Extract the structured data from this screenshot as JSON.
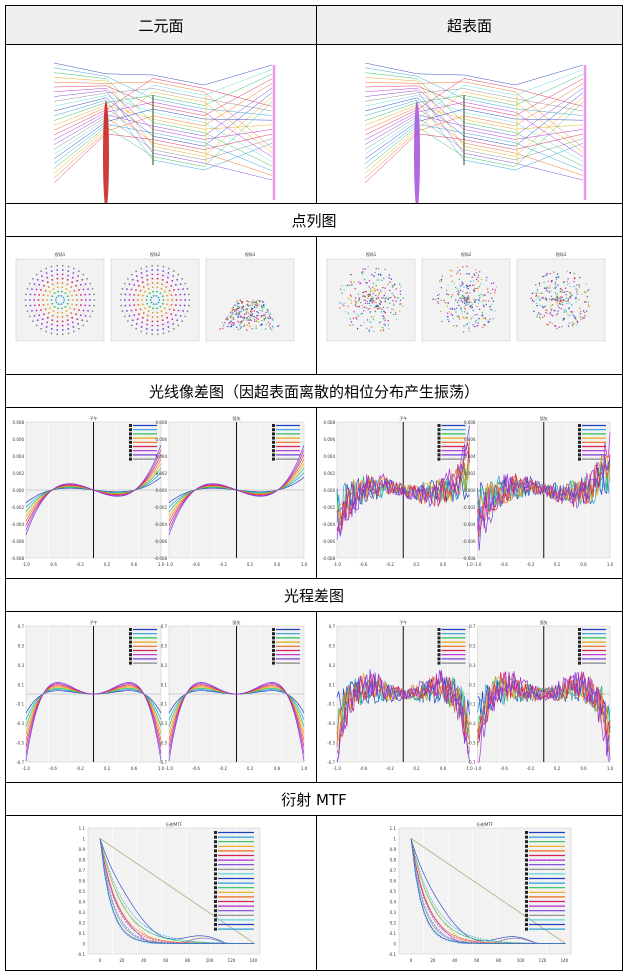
{
  "header": {
    "col_left": "二元面",
    "col_right": "超表面"
  },
  "sections": {
    "spot": "点列图",
    "ray_fan": "光线像差图（因超表面离散的相位分布产生振荡）",
    "opd": "光程差图",
    "mtf": "衍射 MTF"
  },
  "plot_text": {
    "spot_titles": [
      "视场1",
      "视场2",
      "视场3"
    ],
    "fan_titles": [
      "子午",
      "弧矢"
    ],
    "mtf_title": "衍射MTF",
    "x_ticks_fan": [
      "-1.0",
      "-0.8",
      "-0.6",
      "-0.4",
      "-0.2",
      "0.0",
      "0.2",
      "0.4",
      "0.6",
      "0.8",
      "1.0"
    ],
    "fan_y_ticks": [
      "0.008",
      "0.007",
      "0.006",
      "0.005",
      "0.004",
      "0.003",
      "0.002",
      "0.001",
      "0.000",
      "-0.001",
      "-0.002",
      "-0.003",
      "-0.004",
      "-0.005",
      "-0.006",
      "-0.007",
      "-0.008"
    ],
    "opd_y_ticks": [
      "0.7",
      "0.6",
      "0.5",
      "0.4",
      "0.3",
      "0.2",
      "0.1",
      "0.0",
      "-0.1",
      "-0.2",
      "-0.3",
      "-0.4",
      "-0.5",
      "-0.6",
      "-0.7"
    ],
    "mtf_y_ticks": [
      "1.1",
      "1",
      "0.9",
      "0.8",
      "0.7",
      "0.6",
      "0.5",
      "0.4",
      "0.3",
      "0.2",
      "0.1",
      "0",
      "-0.1"
    ],
    "mtf_x_ticks": [
      "0",
      "20",
      "40",
      "60",
      "80",
      "100",
      "120",
      "140"
    ]
  },
  "colors": {
    "header_bg": "#efefef",
    "grid_bg": "#f2f2f2",
    "series": [
      "#1f3fbf",
      "#2aa0d8",
      "#2bbf5a",
      "#e6a817",
      "#f06a1a",
      "#d8235a",
      "#b62ad8",
      "#7a3fd8",
      "#888888",
      "#5dd8d8"
    ]
  }
}
